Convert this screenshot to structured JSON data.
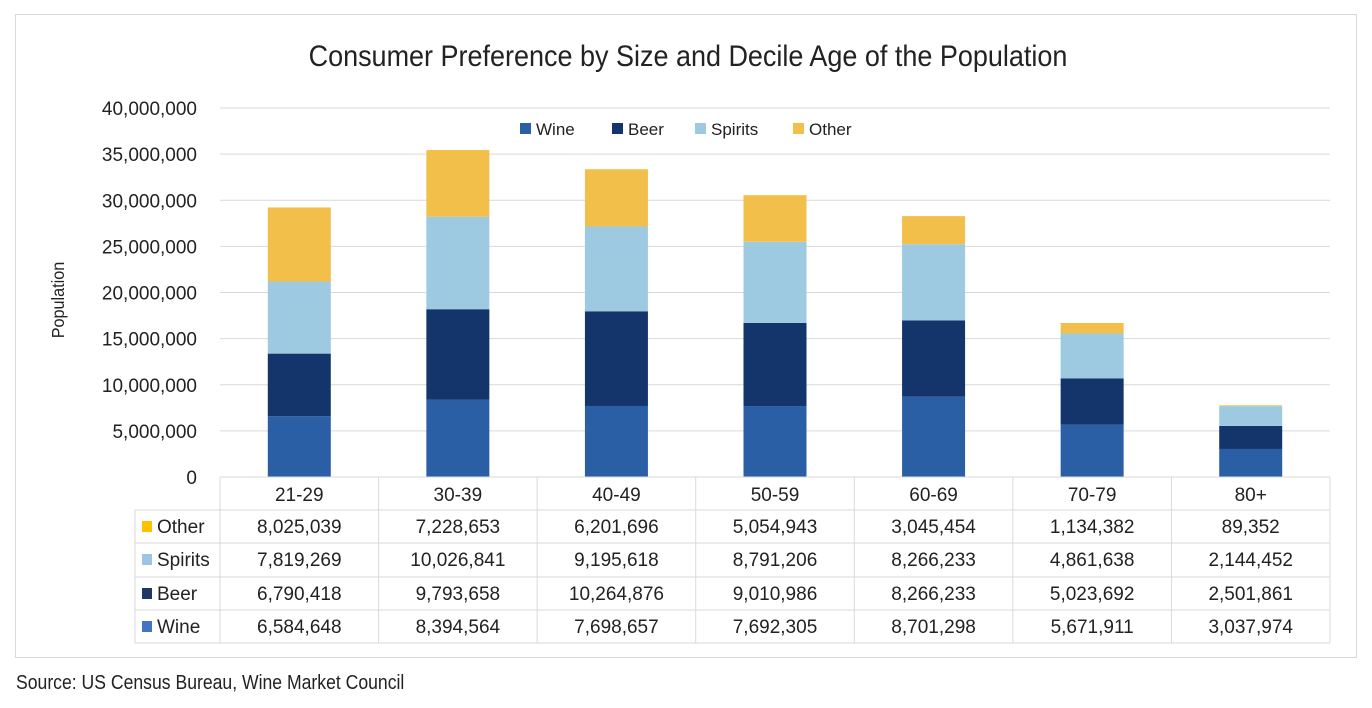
{
  "chart_data": {
    "type": "bar",
    "stacked": true,
    "title": "Consumer Preference by Size and Decile Age of the Population",
    "xlabel": "",
    "ylabel": "Population",
    "ylim": [
      0,
      40000000
    ],
    "yticks": [
      "0",
      "5,000,000",
      "10,000,000",
      "15,000,000",
      "20,000,000",
      "25,000,000",
      "30,000,000",
      "35,000,000",
      "40,000,000"
    ],
    "ytick_values": [
      0,
      5000000,
      10000000,
      15000000,
      20000000,
      25000000,
      30000000,
      35000000,
      40000000
    ],
    "grid": true,
    "legend_position": "top-center",
    "categories": [
      "21-29",
      "30-39",
      "40-49",
      "50-59",
      "60-69",
      "70-79",
      "80+"
    ],
    "series": [
      {
        "name": "Wine",
        "color": "#2a5fa6",
        "key_color": "#4472c4",
        "values": [
          6584648,
          8394564,
          7698657,
          7692305,
          8701298,
          5671911,
          3037974
        ],
        "labels": [
          "6,584,648",
          "8,394,564",
          "7,698,657",
          "7,692,305",
          "8,701,298",
          "5,671,911",
          "3,037,974"
        ]
      },
      {
        "name": "Beer",
        "color": "#14356b",
        "key_color": "#1f3864",
        "values": [
          6790418,
          9793658,
          10264876,
          9010986,
          8266233,
          5023692,
          2501861
        ],
        "labels": [
          "6,790,418",
          "9,793,658",
          "10,264,876",
          "9,010,986",
          "8,266,233",
          "5,023,692",
          "2,501,861"
        ]
      },
      {
        "name": "Spirits",
        "color": "#9ecae1",
        "key_color": "#9dc3e6",
        "values": [
          7819269,
          10026841,
          9195618,
          8791206,
          8266233,
          4861638,
          2144452
        ],
        "labels": [
          "7,819,269",
          "10,026,841",
          "9,195,618",
          "8,791,206",
          "8,266,233",
          "4,861,638",
          "2,144,452"
        ]
      },
      {
        "name": "Other",
        "color": "#f2bf4a",
        "key_color": "#ffc000",
        "values": [
          8025039,
          7228653,
          6201696,
          5054943,
          3045454,
          1134382,
          89352
        ],
        "labels": [
          "8,025,039",
          "7,228,653",
          "6,201,696",
          "5,054,943",
          "3,045,454",
          "1,134,382",
          "89,352"
        ]
      }
    ],
    "table_row_order": [
      "Other",
      "Spirits",
      "Beer",
      "Wine"
    ]
  },
  "source": "Source: US Census Bureau, Wine Market Council"
}
